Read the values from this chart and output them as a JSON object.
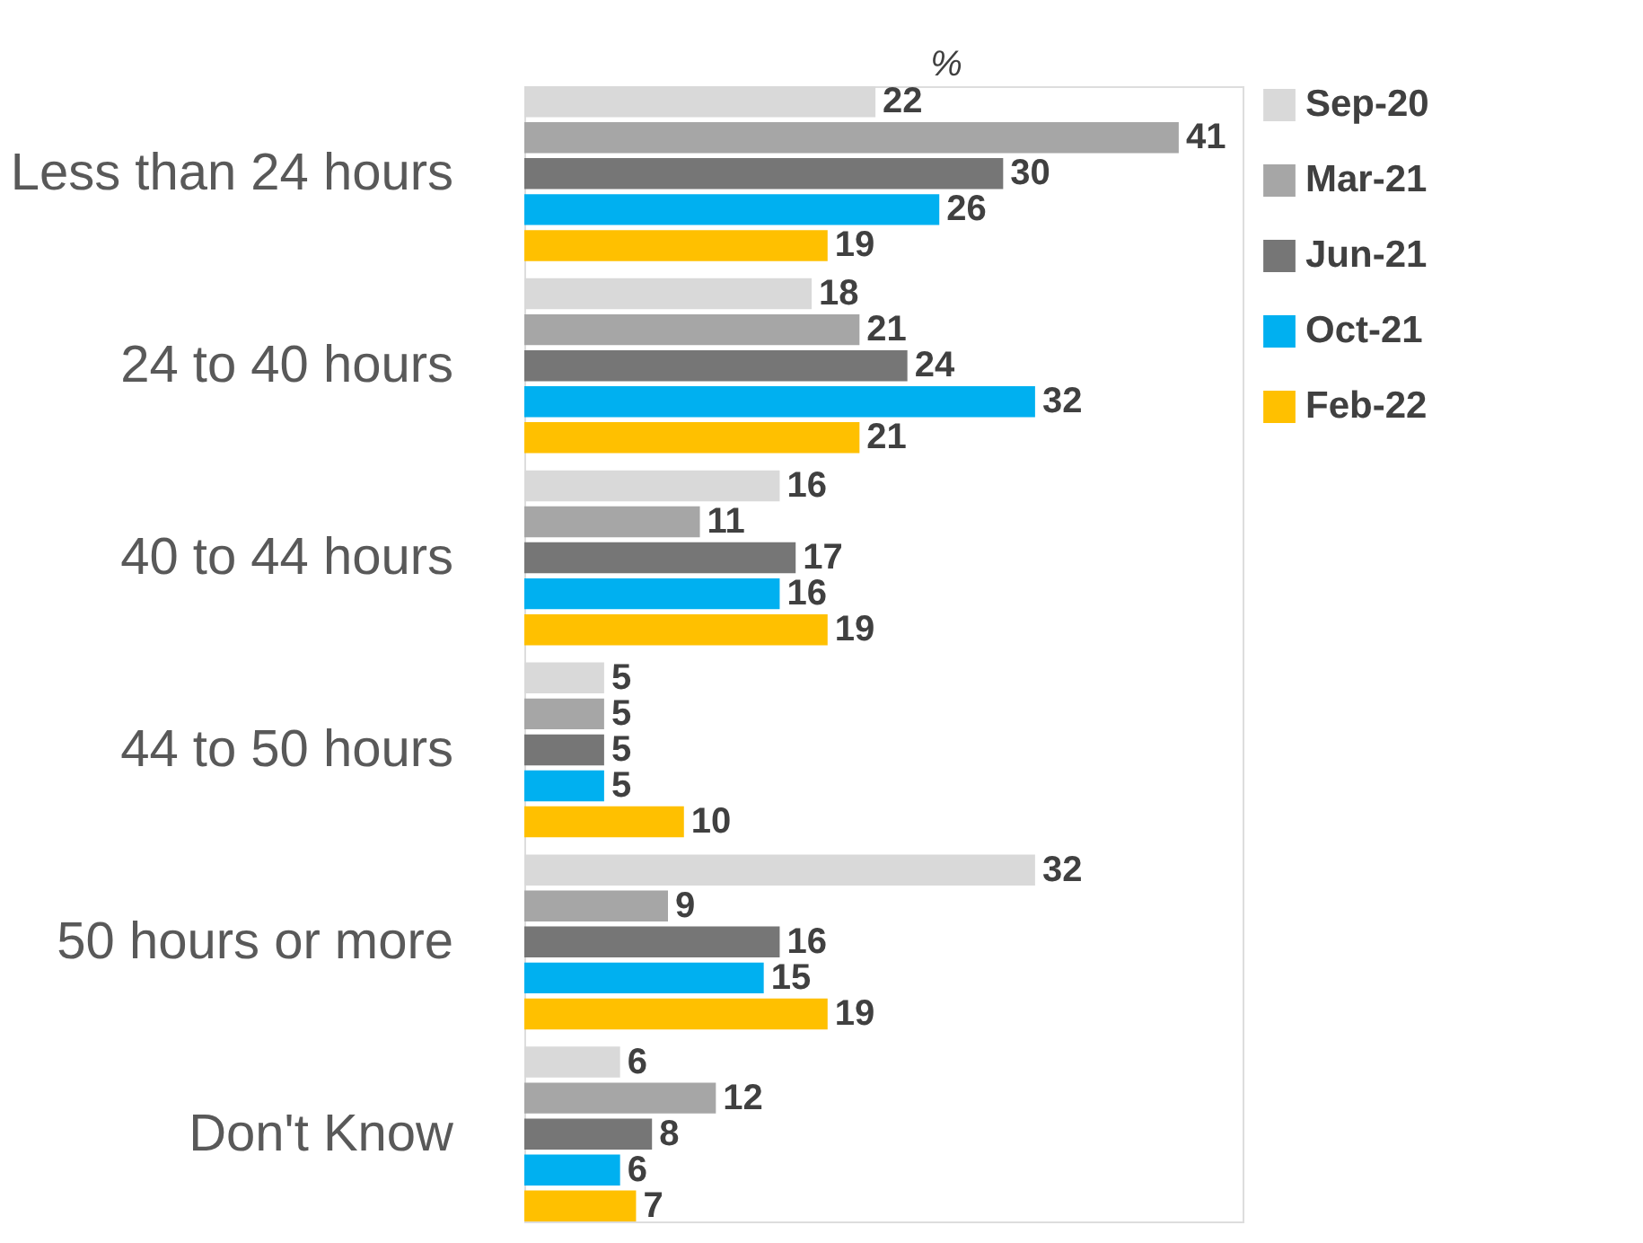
{
  "chart_data": {
    "type": "bar",
    "orientation": "horizontal",
    "categories": [
      "Less than 24 hours",
      "24 to 40 hours",
      "40 to 44 hours",
      "44 to 50 hours",
      "50 hours or more",
      "Don't Know"
    ],
    "series": [
      {
        "name": "Sep-20",
        "color": "#d9d9d9",
        "values": [
          22,
          18,
          16,
          5,
          32,
          6
        ]
      },
      {
        "name": "Mar-21",
        "color": "#a6a6a6",
        "values": [
          41,
          21,
          11,
          5,
          9,
          12
        ]
      },
      {
        "name": "Jun-21",
        "color": "#767676",
        "values": [
          30,
          24,
          17,
          5,
          16,
          8
        ]
      },
      {
        "name": "Oct-21",
        "color": "#00b0f0",
        "values": [
          26,
          32,
          16,
          5,
          15,
          6
        ]
      },
      {
        "name": "Feb-22",
        "color": "#ffc000",
        "values": [
          19,
          21,
          19,
          10,
          19,
          7
        ]
      }
    ],
    "data_labels": true,
    "legend": "right",
    "grid": false,
    "annotations": [
      "%"
    ]
  }
}
